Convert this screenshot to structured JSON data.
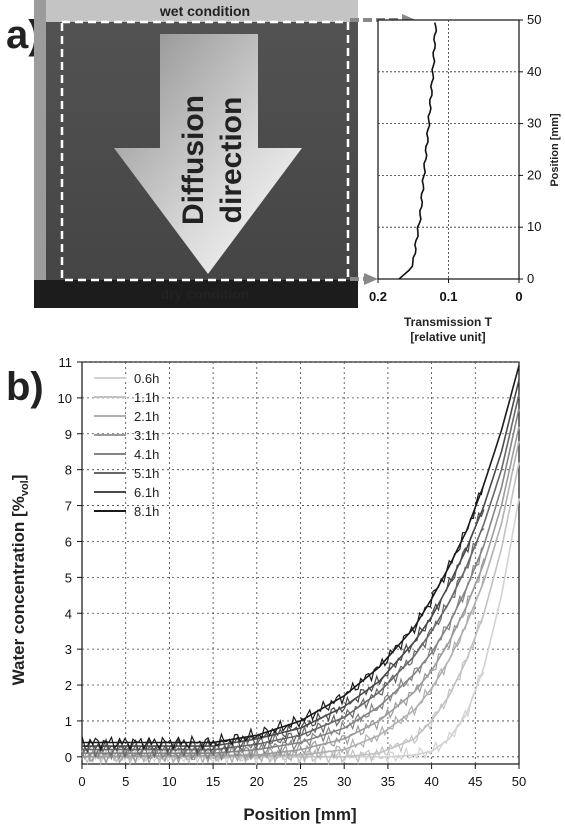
{
  "panel_a": {
    "letter": "a)",
    "wet_label": "wet condition",
    "dry_label": "dry condition",
    "arrow_text_1": "Diffusion",
    "arrow_text_2": "direction",
    "xlabel_1": "Transmission T",
    "xlabel_2": "[relative unit]",
    "ylabel": "Position [mm]"
  },
  "panel_b": {
    "letter": "b)",
    "xlabel": "Position [mm]",
    "ylabel_main": "Water concentration [%",
    "ylabel_sub": "vol",
    "ylabel_end": "]"
  },
  "colors": {
    "image_bg": "#4a4a4a",
    "dry_band": "#1e1e1e",
    "wet_band": "#bcbcbc",
    "arrow_light": "#f0f0f0",
    "arrow_dark": "#9a9a9a"
  },
  "chart_data": [
    {
      "type": "line",
      "x": [
        0.17,
        0.16,
        0.15,
        0.145,
        0.14,
        0.135,
        0.13,
        0.125,
        0.122,
        0.12,
        0.118
      ],
      "y": [
        0,
        1,
        3,
        8,
        12,
        20,
        27,
        35,
        40,
        45,
        49.5
      ],
      "xlabel": "Transmission T [relative unit]",
      "ylabel": "Position [mm]",
      "xlim": [
        0.2,
        0
      ],
      "ylim": [
        0,
        50
      ],
      "xticks": [
        "0.2",
        "0.1",
        "0"
      ],
      "yticks": [
        "0",
        "10",
        "20",
        "30",
        "40",
        "50"
      ],
      "grid": true
    },
    {
      "type": "line",
      "xlabel": "Position [mm]",
      "xlim": [
        0,
        50
      ],
      "ylim": [
        -0.2,
        11
      ],
      "xticks": [
        "0",
        "5",
        "10",
        "15",
        "20",
        "25",
        "30",
        "35",
        "40",
        "45",
        "50"
      ],
      "yticks": [
        "0",
        "1",
        "2",
        "3",
        "4",
        "5",
        "6",
        "7",
        "8",
        "9",
        "10",
        "11"
      ],
      "grid": true,
      "legend": "top-left",
      "series": [
        {
          "name": "0.6h",
          "color": "#d2d2d2",
          "x": [
            0,
            35,
            38,
            40,
            42,
            44,
            46,
            48,
            50
          ],
          "y": [
            0,
            0,
            0.05,
            0.15,
            0.5,
            1.2,
            2.5,
            4.5,
            7.2
          ]
        },
        {
          "name": "1.1h",
          "color": "#c2c2c2",
          "x": [
            0,
            30,
            34,
            38,
            40,
            42,
            44,
            46,
            48,
            50
          ],
          "y": [
            0,
            0,
            0.1,
            0.5,
            1.0,
            1.7,
            2.7,
            4.0,
            5.8,
            8.2
          ]
        },
        {
          "name": "2.1h",
          "color": "#b0b0b0",
          "x": [
            0,
            25,
            30,
            34,
            38,
            40,
            42,
            44,
            46,
            48,
            50
          ],
          "y": [
            0,
            0.05,
            0.2,
            0.6,
            1.3,
            1.9,
            2.7,
            3.7,
            4.9,
            6.5,
            8.8
          ]
        },
        {
          "name": "3.1h",
          "color": "#9c9c9c",
          "x": [
            0,
            20,
            25,
            30,
            34,
            38,
            40,
            42,
            44,
            46,
            48,
            50
          ],
          "y": [
            0,
            0.05,
            0.2,
            0.5,
            1.0,
            1.8,
            2.4,
            3.2,
            4.2,
            5.4,
            7.0,
            9.2
          ]
        },
        {
          "name": "4.1h",
          "color": "#848484",
          "x": [
            0,
            15,
            20,
            25,
            30,
            34,
            38,
            40,
            42,
            44,
            46,
            48,
            50
          ],
          "y": [
            0.1,
            0.1,
            0.2,
            0.4,
            0.8,
            1.4,
            2.3,
            2.9,
            3.7,
            4.7,
            5.9,
            7.5,
            9.7
          ]
        },
        {
          "name": "5.1h",
          "color": "#686868",
          "x": [
            0,
            15,
            20,
            25,
            30,
            34,
            38,
            40,
            42,
            44,
            46,
            48,
            50
          ],
          "y": [
            0.2,
            0.2,
            0.35,
            0.6,
            1.1,
            1.8,
            2.8,
            3.5,
            4.3,
            5.3,
            6.5,
            8.0,
            10.1
          ]
        },
        {
          "name": "6.1h",
          "color": "#4a4a4a",
          "x": [
            0,
            15,
            20,
            25,
            30,
            34,
            38,
            40,
            42,
            44,
            46,
            48,
            50
          ],
          "y": [
            0.3,
            0.3,
            0.5,
            0.8,
            1.4,
            2.1,
            3.2,
            3.9,
            4.8,
            5.8,
            7.0,
            8.5,
            10.5
          ]
        },
        {
          "name": "8.1h",
          "color": "#1a1a1a",
          "x": [
            0,
            15,
            20,
            25,
            30,
            34,
            38,
            40,
            42,
            44,
            46,
            48,
            50
          ],
          "y": [
            0.4,
            0.4,
            0.6,
            1.0,
            1.7,
            2.5,
            3.6,
            4.4,
            5.3,
            6.3,
            7.6,
            9.1,
            10.9
          ]
        }
      ]
    }
  ]
}
